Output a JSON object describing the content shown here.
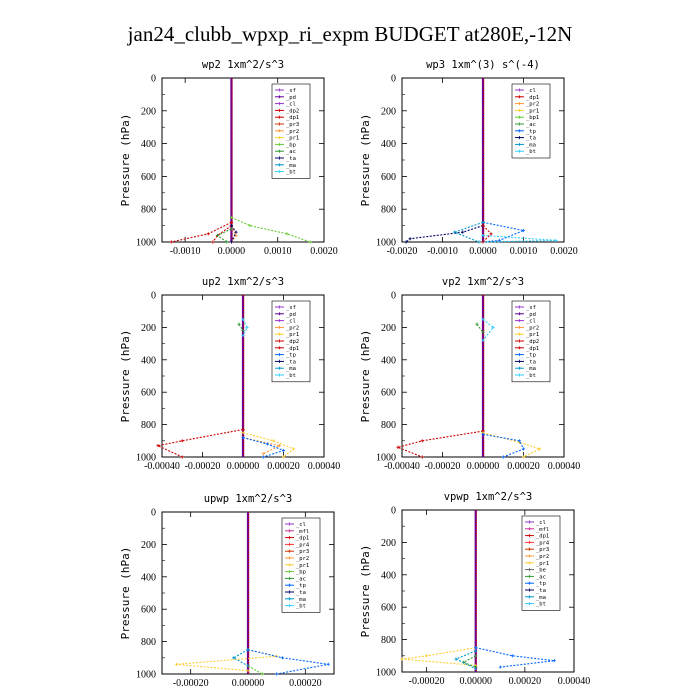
{
  "figure_title": "jan24_clubb_wpxp_ri_expm  BUDGET at280E,-12N",
  "colors": {
    "sf": "#9933cc",
    "pd": "#660099",
    "cl": "#9933cc",
    "dp1": "#cc0000",
    "dp2": "#cc0000",
    "pr1": "#ffcc33",
    "pr2": "#ff9933",
    "pr3": "#cc3300",
    "pr4": "#ff3333",
    "bp": "#66cc33",
    "ac": "#339933",
    "tp": "#0066ff",
    "ta": "#000066",
    "ma": "#0099cc",
    "bt": "#33ccff",
    "mfl": "#cc3399",
    "total": "#cc0000"
  },
  "chart_data": [
    {
      "type": "line",
      "title": "wp2  1xm^2/s^3",
      "ylabel": "Pressure (hPa)",
      "ylim": [
        1000,
        0
      ],
      "xlim": [
        -0.0015,
        0.002
      ],
      "xticks": [
        "-0.0010",
        "0.0000",
        "0.0010",
        "0.0020"
      ],
      "xtick_values": [
        -0.001,
        0.0,
        0.001,
        0.002
      ],
      "yticks": [
        "0",
        "200",
        "400",
        "600",
        "800",
        "1000"
      ],
      "legend": [
        "_sf",
        "_pd",
        "_cl",
        "_dp2",
        "_dp1",
        "_pr3",
        "_pr2",
        "_pr1",
        "_bp",
        "_ac",
        "_ta",
        "_ma",
        "_bt"
      ],
      "legend_position": "top-right",
      "series": [
        {
          "name": "_bp",
          "pressure": [
            850,
            900,
            950,
            1000
          ],
          "values": [
            0.0,
            0.0004,
            0.0012,
            0.0017
          ]
        },
        {
          "name": "_dp1",
          "pressure": [
            880,
            950,
            1000
          ],
          "values": [
            0.0,
            -0.0005,
            -0.0013
          ]
        },
        {
          "name": "_dp2",
          "pressure": [
            900,
            960,
            1000
          ],
          "values": [
            0.0,
            -0.0003,
            -0.0004
          ]
        },
        {
          "name": "_ac",
          "pressure": [
            920,
            960,
            1000
          ],
          "values": [
            0.0,
            -0.0003,
            -0.0001
          ]
        },
        {
          "name": "_pr2",
          "pressure": [
            900,
            960,
            1000
          ],
          "values": [
            0.0,
            0.0001,
            0.0
          ]
        },
        {
          "name": "_ta",
          "pressure": [
            900,
            940,
            1000
          ],
          "values": [
            0.0,
            0.0001,
            0.0
          ]
        }
      ]
    },
    {
      "type": "line",
      "title": "wp3  1xm^(3) s^(-4)",
      "ylabel": "Pressure (hPa)",
      "ylim": [
        1000,
        0
      ],
      "xlim": [
        -0.002,
        0.002
      ],
      "xticks": [
        "-0.0020",
        "-0.0010",
        "0.0000",
        "0.0010",
        "0.0020"
      ],
      "xtick_values": [
        -0.002,
        -0.001,
        0.0,
        0.001,
        0.002
      ],
      "yticks": [
        "0",
        "200",
        "400",
        "600",
        "800",
        "1000"
      ],
      "legend": [
        "_cl",
        "_dp1",
        "_pr2",
        "_pr1",
        "_bp1",
        "_ac",
        "_tp",
        "_ta",
        "_ma",
        "_bt"
      ],
      "legend_position": "top-right",
      "series": [
        {
          "name": "_ta",
          "pressure": [
            900,
            940,
            980,
            1000
          ],
          "values": [
            0.0,
            -0.0005,
            -0.0018,
            -0.0019
          ]
        },
        {
          "name": "_tp",
          "pressure": [
            880,
            930,
            990,
            1000
          ],
          "values": [
            0.0,
            0.001,
            0.0004,
            0.0
          ]
        },
        {
          "name": "_ma",
          "pressure": [
            880,
            940,
            1000
          ],
          "values": [
            0.0,
            -0.0007,
            -0.0001
          ]
        },
        {
          "name": "_bt",
          "pressure": [
            960,
            990,
            1000
          ],
          "values": [
            0.0,
            0.0018,
            0.0
          ]
        },
        {
          "name": "_dp1",
          "pressure": [
            900,
            950,
            1000
          ],
          "values": [
            0.0,
            0.0002,
            0.0
          ]
        }
      ]
    },
    {
      "type": "line",
      "title": "up2  1xm^2/s^3",
      "ylabel": "Pressure (hPa)",
      "ylim": [
        1000,
        0
      ],
      "xlim": [
        -0.0004,
        0.0004
      ],
      "xticks": [
        "-0.00040",
        "-0.00020",
        "0.00000",
        "0.00020",
        "0.00040"
      ],
      "xtick_values": [
        -0.0004,
        -0.0002,
        0.0,
        0.0002,
        0.0004
      ],
      "yticks": [
        "0",
        "200",
        "400",
        "600",
        "800",
        "1000"
      ],
      "legend": [
        "_sf",
        "_pd",
        "_cl",
        "_pr2",
        "_pr1",
        "_dp2",
        "_dp1",
        "_tp",
        "_ta",
        "_ma",
        "_bt"
      ],
      "legend_position": "top-right",
      "series": [
        {
          "name": "_dp2",
          "pressure": [
            830,
            900,
            930,
            1000
          ],
          "values": [
            0.0,
            -0.0003,
            -0.00042,
            -0.0003
          ]
        },
        {
          "name": "_pr1",
          "pressure": [
            850,
            900,
            950,
            1000
          ],
          "values": [
            0.0,
            0.00015,
            0.00025,
            0.0002
          ]
        },
        {
          "name": "_pr2",
          "pressure": [
            880,
            930,
            980
          ],
          "values": [
            0.0,
            0.00018,
            0.0001
          ]
        },
        {
          "name": "_tp",
          "pressure": [
            880,
            920,
            960,
            1000
          ],
          "values": [
            0.0,
            0.00012,
            0.0002,
            0.0001
          ]
        },
        {
          "name": "_bt",
          "pressure": [
            150,
            200,
            250
          ],
          "values": [
            0.0,
            2e-05,
            0.0
          ]
        },
        {
          "name": "_ac",
          "pressure": [
            180,
            220
          ],
          "values": [
            -2e-05,
            0.0
          ]
        }
      ]
    },
    {
      "type": "line",
      "title": "vp2  1xm^2/s^3",
      "ylabel": "Pressure (hPa)",
      "ylim": [
        1000,
        0
      ],
      "xlim": [
        -0.0004,
        0.0004
      ],
      "xticks": [
        "-0.00040",
        "-0.00020",
        "0.00000",
        "0.00020",
        "0.00040"
      ],
      "xtick_values": [
        -0.0004,
        -0.0002,
        0.0,
        0.0002,
        0.0004
      ],
      "yticks": [
        "0",
        "200",
        "400",
        "600",
        "800",
        "1000"
      ],
      "legend": [
        "_sf",
        "_pd",
        "_cl",
        "_pr2",
        "_pr1",
        "_dp2",
        "_dp1",
        "_tp",
        "_ta",
        "_ma",
        "_bt"
      ],
      "legend_position": "top-right",
      "series": [
        {
          "name": "_dp2",
          "pressure": [
            840,
            900,
            940,
            1000
          ],
          "values": [
            0.0,
            -0.0003,
            -0.00042,
            -0.0003
          ]
        },
        {
          "name": "_pr1",
          "pressure": [
            850,
            910,
            950,
            1000
          ],
          "values": [
            0.0,
            0.00018,
            0.00028,
            0.0002
          ]
        },
        {
          "name": "_tp",
          "pressure": [
            860,
            900,
            950,
            1000
          ],
          "values": [
            0.0,
            0.00018,
            0.0002,
            0.0001
          ]
        },
        {
          "name": "_bt",
          "pressure": [
            150,
            200,
            280
          ],
          "values": [
            0.0,
            5e-05,
            0.0
          ]
        },
        {
          "name": "_ac",
          "pressure": [
            180,
            230
          ],
          "values": [
            -3e-05,
            0.0
          ]
        }
      ]
    },
    {
      "type": "line",
      "title": "upwp  1xm^2/s^3",
      "ylabel": "Pressure (hPa)",
      "ylim": [
        1000,
        0
      ],
      "xlim": [
        -0.0003,
        0.0003
      ],
      "xticks": [
        "-0.00020",
        "0.00000",
        "0.00020"
      ],
      "xtick_values": [
        -0.0002,
        0.0,
        0.0002
      ],
      "yticks": [
        "0",
        "200",
        "400",
        "600",
        "800",
        "1000"
      ],
      "legend": [
        "_cl",
        "_mfl",
        "_dp1",
        "_pr4",
        "_pr3",
        "_pr2",
        "_pr1",
        "_bp",
        "_ac",
        "_tp",
        "_ta",
        "_ma",
        "_bt"
      ],
      "legend_position": "top-right",
      "series": [
        {
          "name": "_pr1",
          "pressure": [
            850,
            890,
            940,
            980
          ],
          "values": [
            0.0,
            0.0001,
            -0.00025,
            0.0
          ]
        },
        {
          "name": "_tp",
          "pressure": [
            850,
            900,
            940,
            1000
          ],
          "values": [
            0.0,
            0.00012,
            0.00028,
            0.0001
          ]
        },
        {
          "name": "_bp",
          "pressure": [
            950,
            1000
          ],
          "values": [
            0.0,
            5e-05
          ]
        },
        {
          "name": "_ma",
          "pressure": [
            850,
            900,
            950
          ],
          "values": [
            0.0,
            -5e-05,
            0.0
          ]
        }
      ]
    },
    {
      "type": "line",
      "title": "vpwp  1xm^2/s^3",
      "ylabel": "Pressure (hPa)",
      "ylim": [
        1000,
        0
      ],
      "xlim": [
        -0.0003,
        0.0004
      ],
      "xticks": [
        "-0.00020",
        "0.00000",
        "0.00020",
        "0.00040"
      ],
      "xtick_values": [
        -0.0002,
        0.0,
        0.0002,
        0.0004
      ],
      "yticks": [
        "0",
        "200",
        "400",
        "600",
        "800",
        "1000"
      ],
      "legend": [
        "_cl",
        "_mfl",
        "_dp1",
        "_pr4",
        "_pr3",
        "_pr2",
        "_pr1",
        "_be",
        "_ac",
        "_tp",
        "_ta",
        "_ma",
        "_bt"
      ],
      "legend_position": "top-right",
      "series": [
        {
          "name": "_pr1",
          "pressure": [
            850,
            900,
            920,
            960
          ],
          "values": [
            0.0,
            -0.0002,
            -0.0003,
            0.0
          ]
        },
        {
          "name": "_tp",
          "pressure": [
            850,
            900,
            930,
            970
          ],
          "values": [
            0.0,
            0.00015,
            0.00032,
            0.0001
          ]
        },
        {
          "name": "_ac",
          "pressure": [
            900,
            940,
            970
          ],
          "values": [
            0.0,
            -5e-05,
            0.0
          ]
        },
        {
          "name": "_ma",
          "pressure": [
            870,
            920,
            980
          ],
          "values": [
            0.0,
            -8e-05,
            0.0
          ]
        }
      ]
    }
  ]
}
